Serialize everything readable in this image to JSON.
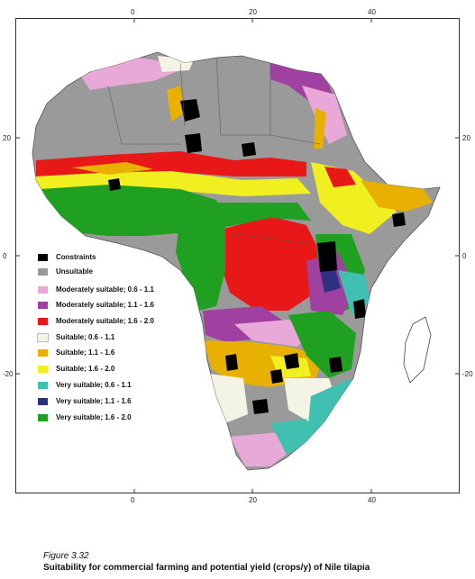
{
  "map": {
    "axis_ticks": {
      "top": [
        "0",
        "20",
        "40"
      ],
      "bottom": [
        "0",
        "20",
        "40"
      ],
      "left": [
        "20",
        "0",
        "-20"
      ],
      "right": [
        "20",
        "0",
        "-20"
      ]
    },
    "colors": {
      "unsuitable": "#9a9a9a",
      "moderately_suitable_0_6_1_1": "#e8a8d8",
      "moderately_suitable_1_1_1_6": "#a040a0",
      "moderately_suitable_1_6_2_0": "#e81818",
      "suitable_0_6_1_1": "#f4f4e4",
      "suitable_1_1_1_6": "#e8b000",
      "suitable_1_6_2_0": "#f0f020",
      "very_suitable_0_6_1_1": "#40c0b0",
      "very_suitable_1_1_1_6": "#303080",
      "very_suitable_1_6_2_0": "#20a020",
      "constraints": "#000000",
      "country_border": "#555555"
    }
  },
  "legend": {
    "items": [
      {
        "label": "Constraints",
        "color": "#000000"
      },
      {
        "label": "Unsuitable",
        "color": "#9a9a9a"
      },
      {
        "label": "Moderately suitable; 0.6 - 1.1",
        "color": "#e8a8d8"
      },
      {
        "label": "Moderately suitable; 1.1 - 1.6",
        "color": "#a040a0"
      },
      {
        "label": "Moderately suitable; 1.6 - 2.0",
        "color": "#e81818"
      },
      {
        "label": "Suitable; 0.6 - 1.1",
        "color": "#f4f4e4"
      },
      {
        "label": "Suitable; 1.1 - 1.6",
        "color": "#e8b000"
      },
      {
        "label": "Suitable; 1.6 - 2.0",
        "color": "#f0f020"
      },
      {
        "label": "Very suitable; 0.6 - 1.1",
        "color": "#40c0b0"
      },
      {
        "label": "Very suitable; 1.1 - 1.6",
        "color": "#303080"
      },
      {
        "label": "Very suitable; 1.6 - 2.0",
        "color": "#20a020"
      }
    ]
  },
  "caption": {
    "figure_number": "Figure 3.32",
    "title": "Suitability for commercial farming and potential yield (crops/y) of Nile tilapia"
  }
}
